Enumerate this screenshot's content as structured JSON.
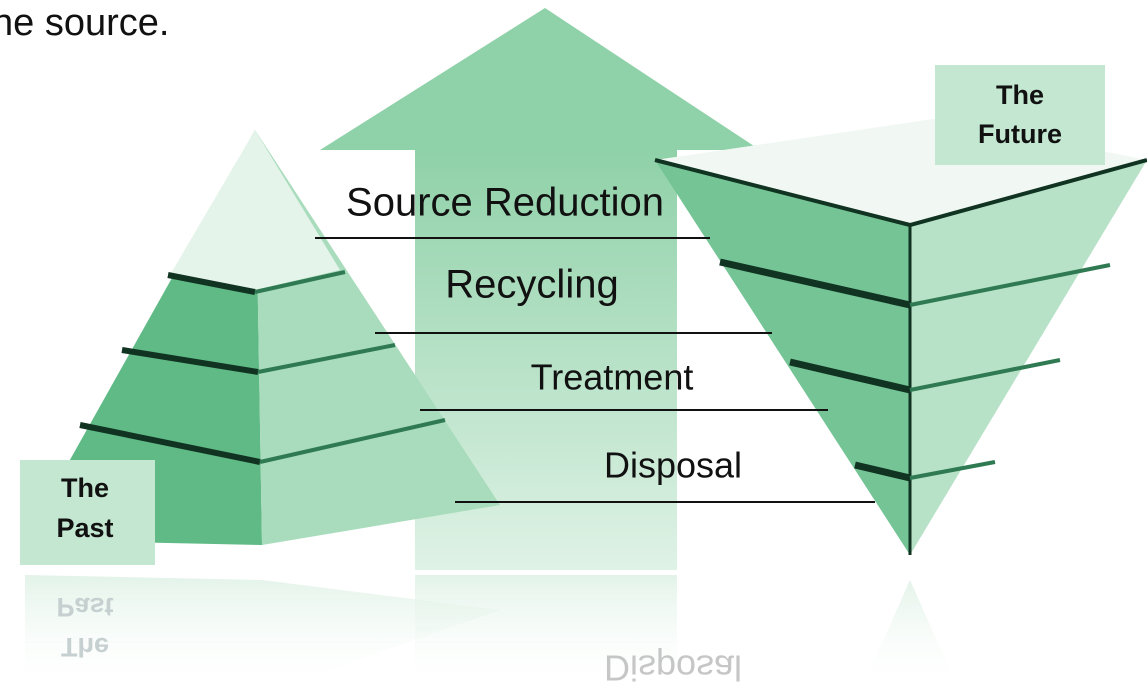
{
  "caption": "he source.",
  "arrow_levels": [
    "Source Reduction",
    "Recycling",
    "Treatment",
    "Disposal"
  ],
  "future_label": [
    "The",
    "Future"
  ],
  "past_label": [
    "The",
    "Past"
  ]
}
